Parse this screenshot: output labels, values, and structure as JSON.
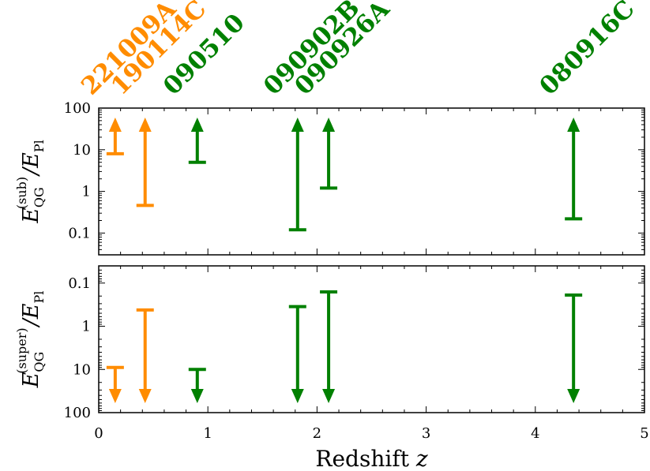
{
  "colors": {
    "orange": "#ff8c00",
    "green": "#008000"
  },
  "chart_data": {
    "type": "scatter",
    "xlabel_text": "Redshift",
    "xlabel_var": "z",
    "xlim": [
      0,
      5
    ],
    "x_ticks": [
      "0",
      "1",
      "2",
      "3",
      "4",
      "5"
    ],
    "grb_labels": [
      {
        "name": "221009A",
        "z": 0.151,
        "color": "orange"
      },
      {
        "name": "190114C",
        "z": 0.425,
        "color": "orange"
      },
      {
        "name": "090510",
        "z": 0.903,
        "color": "green"
      },
      {
        "name": "090902B",
        "z": 1.822,
        "color": "green"
      },
      {
        "name": "090926A",
        "z": 2.1062,
        "color": "green"
      },
      {
        "name": "080916C",
        "z": 4.35,
        "color": "green"
      }
    ],
    "panels": [
      {
        "id": "subluminal",
        "ylabel_E": "E",
        "ylabel_sub": "QG",
        "ylabel_sup": "(sub)",
        "ylabel_slash": "/",
        "ylabel_E2": "E",
        "ylabel_sub2": "Pl",
        "yscale": "log",
        "ylim": [
          0.03,
          100
        ],
        "inverted": false,
        "y_ticks": [
          {
            "value": 0.1,
            "label": "0.1"
          },
          {
            "value": 1,
            "label": "1"
          },
          {
            "value": 10,
            "label": "10"
          },
          {
            "value": 100,
            "label": "100"
          }
        ],
        "limits": [
          {
            "grb": "221009A",
            "z": 0.151,
            "limit": 8.0,
            "color": "orange"
          },
          {
            "grb": "190114C",
            "z": 0.425,
            "limit": 0.46,
            "color": "orange"
          },
          {
            "grb": "090510",
            "z": 0.903,
            "limit": 5.0,
            "color": "green"
          },
          {
            "grb": "090902B",
            "z": 1.822,
            "limit": 0.12,
            "color": "green"
          },
          {
            "grb": "090926A",
            "z": 2.1062,
            "limit": 1.2,
            "color": "green"
          },
          {
            "grb": "080916C",
            "z": 4.35,
            "limit": 0.22,
            "color": "green"
          }
        ]
      },
      {
        "id": "superluminal",
        "ylabel_E": "E",
        "ylabel_sub": "QG",
        "ylabel_sup": "(super)",
        "ylabel_slash": "/",
        "ylabel_E2": "E",
        "ylabel_sub2": "Pl",
        "yscale": "log",
        "ylim": [
          0.04,
          100
        ],
        "inverted": true,
        "y_ticks": [
          {
            "value": 0.1,
            "label": "0.1"
          },
          {
            "value": 1,
            "label": "1"
          },
          {
            "value": 10,
            "label": "10"
          },
          {
            "value": 100,
            "label": "100"
          }
        ],
        "limits": [
          {
            "grb": "221009A",
            "z": 0.151,
            "limit": 9.0,
            "color": "orange"
          },
          {
            "grb": "190114C",
            "z": 0.425,
            "limit": 0.42,
            "color": "orange"
          },
          {
            "grb": "090510",
            "z": 0.903,
            "limit": 10.0,
            "color": "green"
          },
          {
            "grb": "090902B",
            "z": 1.822,
            "limit": 0.35,
            "color": "green"
          },
          {
            "grb": "090926A",
            "z": 2.1062,
            "limit": 0.16,
            "color": "green"
          },
          {
            "grb": "080916C",
            "z": 4.35,
            "limit": 0.19,
            "color": "green"
          }
        ]
      }
    ]
  }
}
